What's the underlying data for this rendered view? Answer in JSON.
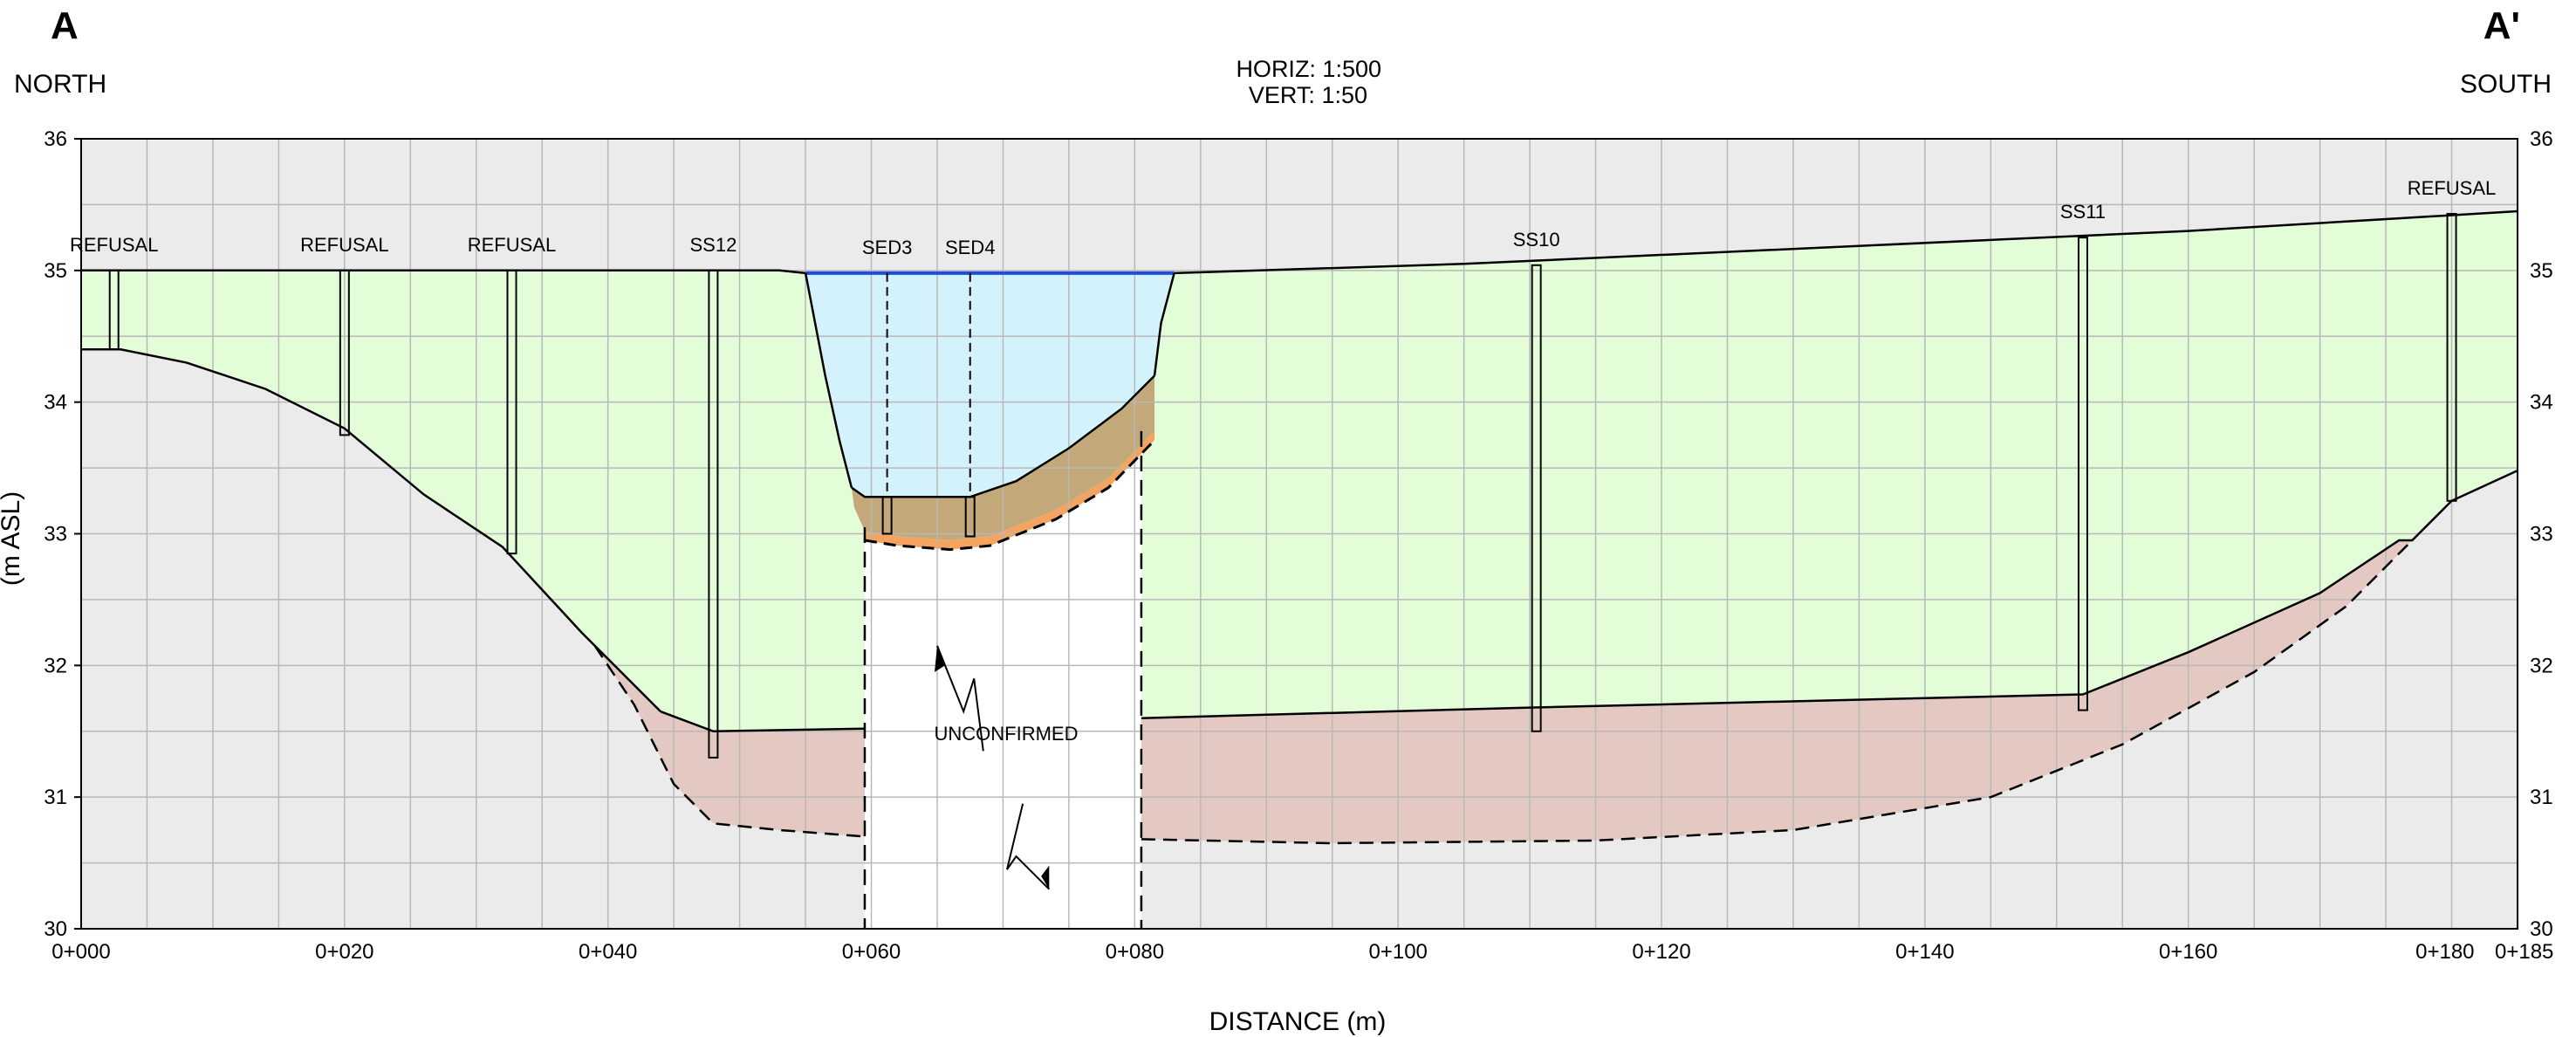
{
  "header": {
    "left_letter": "A",
    "right_letter": "A'",
    "left_direction": "NORTH",
    "right_direction": "SOUTH",
    "scale_horiz": "HORIZ:  1:500",
    "scale_vert": "VERT:  1:50"
  },
  "axes": {
    "x_title": "DISTANCE (m)",
    "y_title": "(m ASL)",
    "x_range": [
      0,
      185
    ],
    "y_range": [
      30,
      36
    ],
    "x_ticks": [
      {
        "value": 0,
        "label": "0+000"
      },
      {
        "value": 20,
        "label": "0+020"
      },
      {
        "value": 40,
        "label": "0+040"
      },
      {
        "value": 60,
        "label": "0+060"
      },
      {
        "value": 80,
        "label": "0+080"
      },
      {
        "value": 100,
        "label": "0+100"
      },
      {
        "value": 120,
        "label": "0+120"
      },
      {
        "value": 140,
        "label": "0+140"
      },
      {
        "value": 160,
        "label": "0+160"
      },
      {
        "value": 180,
        "label": "0+180"
      },
      {
        "value": 185,
        "label": "0+185"
      }
    ],
    "y_ticks": [
      {
        "value": 30,
        "label": "30"
      },
      {
        "value": 31,
        "label": "31"
      },
      {
        "value": 32,
        "label": "32"
      },
      {
        "value": 33,
        "label": "33"
      },
      {
        "value": 34,
        "label": "34"
      },
      {
        "value": 35,
        "label": "35"
      },
      {
        "value": 36,
        "label": "36"
      }
    ],
    "grid": true,
    "grid_x_step": 5,
    "grid_y_step": 0.5
  },
  "colors": {
    "fill_layer": "#e2fdd8",
    "native_layer": "#e3c9c2",
    "bedrock": "#ebebeb",
    "water": "#d3f2fb",
    "sediment": "#c3a97a",
    "sediment_base": "#f4a460",
    "water_surface": "#1f4fd8",
    "grid": "#b8b8b8"
  },
  "annotations": {
    "unconfirmed": "UNCONFIRMED"
  },
  "chart_data": {
    "type": "area",
    "title": "",
    "xlabel": "DISTANCE (m)",
    "ylabel": "(m ASL)",
    "xlim": [
      0,
      185
    ],
    "ylim": [
      30,
      36
    ],
    "ground_surface": [
      [
        0,
        35.0
      ],
      [
        53,
        35.0
      ],
      [
        55,
        34.98
      ],
      [
        83,
        34.98
      ],
      [
        105,
        35.05
      ],
      [
        160,
        35.3
      ],
      [
        185,
        35.45
      ]
    ],
    "water_surface": [
      [
        55,
        34.98
      ],
      [
        83,
        34.98
      ]
    ],
    "top_of_sediment": [
      [
        58.5,
        33.35
      ],
      [
        59.5,
        33.28
      ],
      [
        67.5,
        33.28
      ],
      [
        71,
        33.4
      ],
      [
        75,
        33.65
      ],
      [
        79,
        33.95
      ],
      [
        81.5,
        34.2
      ]
    ],
    "base_of_sediment": [
      [
        59.5,
        33.02
      ],
      [
        62,
        32.98
      ],
      [
        66,
        32.95
      ],
      [
        69,
        32.98
      ],
      [
        74,
        33.18
      ],
      [
        78,
        33.42
      ],
      [
        81.5,
        33.78
      ]
    ],
    "top_of_native": [
      [
        44,
        31.65
      ],
      [
        48,
        31.5
      ],
      [
        59.5,
        31.52
      ],
      [
        80.5,
        31.6
      ],
      [
        110,
        31.68
      ],
      [
        152,
        31.78
      ],
      [
        160,
        32.1
      ],
      [
        170,
        32.55
      ],
      [
        176,
        32.95
      ]
    ],
    "top_of_bedrock": [
      [
        0,
        34.4
      ],
      [
        3,
        34.4
      ],
      [
        8,
        34.3
      ],
      [
        14,
        34.1
      ],
      [
        20,
        33.8
      ],
      [
        26,
        33.3
      ],
      [
        32,
        32.9
      ],
      [
        38,
        32.25
      ],
      [
        44,
        31.65
      ]
    ],
    "inferred_bedrock": [
      [
        39,
        32.15
      ],
      [
        42,
        31.7
      ],
      [
        45,
        31.1
      ],
      [
        48,
        30.8
      ],
      [
        53,
        30.75
      ],
      [
        59.5,
        30.7
      ],
      [
        80.5,
        30.68
      ],
      [
        95,
        30.65
      ],
      [
        115,
        30.67
      ],
      [
        130,
        30.75
      ],
      [
        145,
        31.0
      ],
      [
        155,
        31.4
      ],
      [
        165,
        31.95
      ],
      [
        172,
        32.45
      ],
      [
        177,
        32.95
      ]
    ],
    "boreholes": [
      {
        "name": "REFUSAL",
        "x": 2.5,
        "top": 35.0,
        "bottom": 34.4
      },
      {
        "name": "REFUSAL",
        "x": 20,
        "top": 35.0,
        "bottom": 33.75
      },
      {
        "name": "REFUSAL",
        "x": 32.7,
        "top": 35.0,
        "bottom": 32.85
      },
      {
        "name": "SS12",
        "x": 48,
        "top": 35.0,
        "bottom": 31.3
      },
      {
        "name": "SED3",
        "x": 61.2,
        "top": 34.98,
        "bottom": 33.0
      },
      {
        "name": "SED4",
        "x": 67.5,
        "top": 34.98,
        "bottom": 32.98
      },
      {
        "name": "SS10",
        "x": 110.5,
        "top": 35.04,
        "bottom": 31.5
      },
      {
        "name": "SS11",
        "x": 152,
        "top": 35.25,
        "bottom": 31.66
      },
      {
        "name": "REFUSAL",
        "x": 180,
        "top": 35.43,
        "bottom": 33.25
      }
    ]
  }
}
